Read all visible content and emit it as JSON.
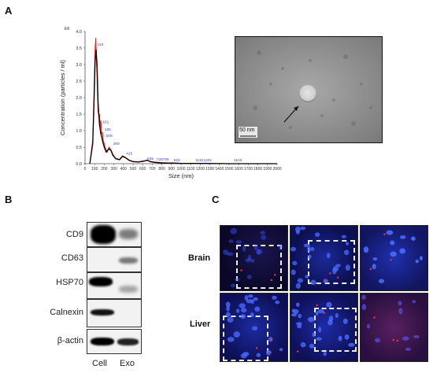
{
  "figure": {
    "panel_a": "A",
    "panel_b": "B",
    "panel_c": "C",
    "tem_scale_label": "50 nm",
    "blot": {
      "markers": [
        "CD9",
        "CD63",
        "HSP70",
        "Calnexin",
        "β-actin"
      ],
      "lanes": [
        "Cell",
        "Exo"
      ]
    },
    "micro": {
      "rows": [
        "Brain",
        "Liver"
      ]
    }
  },
  "chart_data": {
    "type": "line",
    "ylabel": "Concentration (particles / ml)",
    "xlabel": "Size (nm)",
    "y_unit": "E8",
    "xlim": [
      0,
      2000
    ],
    "ylim": [
      0,
      4.0
    ],
    "x_ticks": [
      0,
      100,
      200,
      300,
      400,
      500,
      600,
      700,
      800,
      900,
      1000,
      1100,
      1200,
      1300,
      1400,
      1500,
      1600,
      1700,
      1800,
      1900,
      2000
    ],
    "y_ticks": [
      "4.0",
      "3.5",
      "3.0",
      "2.5",
      "2.0",
      "1.5",
      "1.0",
      "0.5",
      "0.0"
    ],
    "series": [
      {
        "color": "#000000",
        "x": [
          50,
          80,
          95,
          105,
          115,
          125,
          135,
          150,
          165,
          175,
          185,
          200,
          220,
          250,
          270,
          290,
          320,
          360,
          390,
          420,
          460,
          500,
          560,
          620,
          650,
          680,
          720,
          800,
          900,
          1000,
          1200,
          1500,
          2000
        ],
        "y": [
          0.0,
          0.6,
          2.0,
          3.1,
          3.45,
          3.0,
          1.9,
          1.2,
          0.9,
          0.8,
          0.65,
          0.5,
          0.35,
          0.45,
          0.4,
          0.25,
          0.15,
          0.12,
          0.22,
          0.18,
          0.1,
          0.06,
          0.05,
          0.08,
          0.1,
          0.06,
          0.04,
          0.02,
          0.02,
          0.01,
          0.01,
          0.0,
          0.0
        ]
      },
      {
        "color": "#e8281e",
        "x": [
          50,
          80,
          95,
          105,
          112,
          118,
          125,
          135,
          145,
          150,
          158,
          165,
          172,
          180,
          190,
          200,
          215,
          230,
          250,
          270,
          290,
          320,
          360,
          390,
          420,
          460,
          500,
          560,
          620,
          650,
          680,
          720,
          800,
          900,
          1000,
          1200,
          1500,
          2000
        ],
        "y": [
          0.0,
          0.7,
          2.3,
          3.5,
          3.8,
          3.2,
          2.6,
          1.6,
          1.4,
          1.5,
          1.1,
          1.3,
          0.9,
          0.95,
          0.7,
          0.6,
          0.45,
          0.35,
          0.5,
          0.42,
          0.28,
          0.16,
          0.13,
          0.24,
          0.19,
          0.11,
          0.07,
          0.06,
          0.09,
          0.11,
          0.07,
          0.05,
          0.03,
          0.02,
          0.01,
          0.01,
          0.0,
          0.0
        ]
      }
    ],
    "annotations": [
      {
        "text": "115",
        "x": 120,
        "y": 3.55
      },
      {
        "text": "161",
        "x": 175,
        "y": 1.2
      },
      {
        "text": "185",
        "x": 195,
        "y": 0.98
      },
      {
        "text": "208",
        "x": 210,
        "y": 0.78
      },
      {
        "text": "280",
        "x": 285,
        "y": 0.55
      },
      {
        "text": "415",
        "x": 420,
        "y": 0.25
      },
      {
        "text": "635",
        "x": 640,
        "y": 0.09
      },
      {
        "text": "728",
        "x": 735,
        "y": 0.07
      },
      {
        "text": "755",
        "x": 800,
        "y": 0.07
      },
      {
        "text": "915",
        "x": 915,
        "y": 0.05
      },
      {
        "text": "1116",
        "x": 1140,
        "y": 0.05
      },
      {
        "text": "1185",
        "x": 1225,
        "y": 0.05
      },
      {
        "text": "1515",
        "x": 1540,
        "y": 0.05
      }
    ]
  }
}
